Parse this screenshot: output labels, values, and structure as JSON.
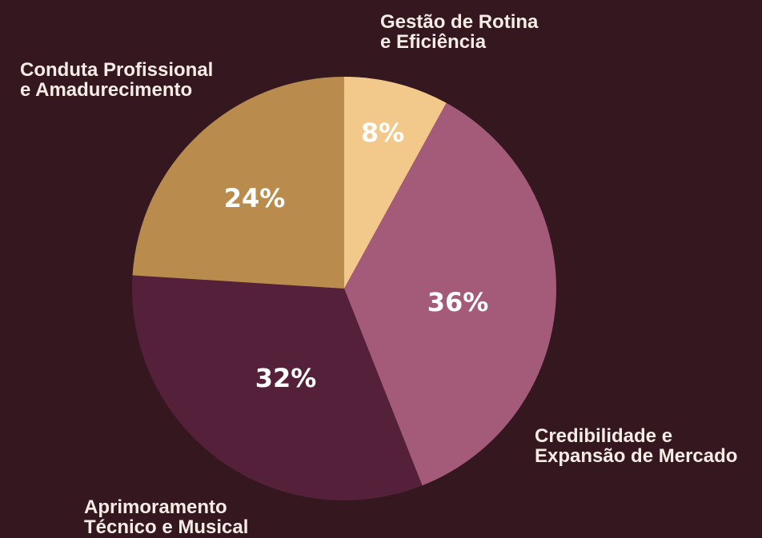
{
  "chart_data": {
    "type": "pie",
    "categories": [
      "Gestão de Rotina\ne Eficiência",
      "Credibilidade e\nExpansão de Mercado",
      "Aprimoramento\nTécnico e Musical",
      "Conduta Profissional\ne Amadurecimento"
    ],
    "values": [
      8,
      36,
      32,
      24
    ],
    "value_labels": [
      "8%",
      "36%",
      "32%",
      "24%"
    ],
    "colors": [
      "#f2c98a",
      "#a45b7a",
      "#55213a",
      "#b98c4d"
    ]
  }
}
